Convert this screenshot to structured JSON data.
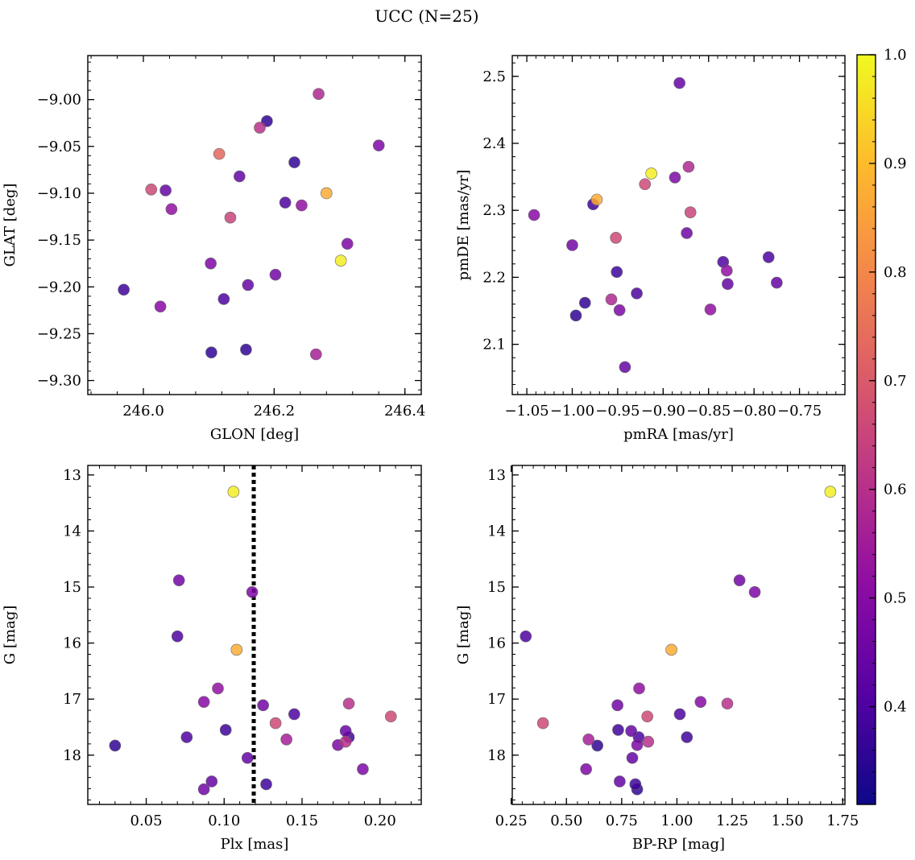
{
  "figure": {
    "title": "UCC (N=25)"
  },
  "colorbar": {
    "vmin": 0.31,
    "vmax": 1.0,
    "ticks": [
      0.4,
      0.5,
      0.6,
      0.7,
      0.8,
      0.9,
      1.0
    ],
    "tick_labels": [
      "0.4",
      "0.5",
      "0.6",
      "0.7",
      "0.8",
      "0.9",
      "1.0"
    ],
    "colormap": "plasma"
  },
  "chart_data": [
    {
      "type": "scatter",
      "id": "glon-glat",
      "xlabel": "GLON [deg]",
      "ylabel": "GLAT [deg]",
      "xlim": [
        245.915,
        246.425
      ],
      "ylim": [
        -9.315,
        -8.953
      ],
      "xticks": [
        246.0,
        246.2,
        246.4
      ],
      "xtick_labels": [
        "246.0",
        "246.2",
        "246.4"
      ],
      "yticks": [
        -9.3,
        -9.25,
        -9.2,
        -9.15,
        -9.1,
        -9.05,
        -9.0
      ],
      "ytick_labels": [
        "−9.30",
        "−9.25",
        "−9.20",
        "−9.15",
        "−9.10",
        "−9.05",
        "−9.00"
      ],
      "inverted_y": false,
      "points": [
        {
          "x": 246.268,
          "y": -8.994,
          "c": 0.58
        },
        {
          "x": 246.189,
          "y": -9.023,
          "c": 0.36
        },
        {
          "x": 246.178,
          "y": -9.03,
          "c": 0.6
        },
        {
          "x": 246.36,
          "y": -9.049,
          "c": 0.48
        },
        {
          "x": 246.116,
          "y": -9.058,
          "c": 0.73
        },
        {
          "x": 246.231,
          "y": -9.067,
          "c": 0.36
        },
        {
          "x": 246.147,
          "y": -9.082,
          "c": 0.44
        },
        {
          "x": 246.012,
          "y": -9.096,
          "c": 0.66
        },
        {
          "x": 246.034,
          "y": -9.097,
          "c": 0.44
        },
        {
          "x": 246.28,
          "y": -9.1,
          "c": 0.87
        },
        {
          "x": 246.217,
          "y": -9.11,
          "c": 0.4
        },
        {
          "x": 246.242,
          "y": -9.113,
          "c": 0.52
        },
        {
          "x": 246.043,
          "y": -9.117,
          "c": 0.52
        },
        {
          "x": 246.133,
          "y": -9.126,
          "c": 0.65
        },
        {
          "x": 246.312,
          "y": -9.154,
          "c": 0.48
        },
        {
          "x": 246.302,
          "y": -9.172,
          "c": 0.98
        },
        {
          "x": 246.103,
          "y": -9.175,
          "c": 0.48
        },
        {
          "x": 246.202,
          "y": -9.187,
          "c": 0.46
        },
        {
          "x": 246.16,
          "y": -9.198,
          "c": 0.44
        },
        {
          "x": 245.97,
          "y": -9.203,
          "c": 0.38
        },
        {
          "x": 246.123,
          "y": -9.213,
          "c": 0.4
        },
        {
          "x": 246.026,
          "y": -9.221,
          "c": 0.5
        },
        {
          "x": 246.157,
          "y": -9.267,
          "c": 0.36
        },
        {
          "x": 246.104,
          "y": -9.27,
          "c": 0.36
        },
        {
          "x": 246.264,
          "y": -9.272,
          "c": 0.56
        }
      ]
    },
    {
      "type": "scatter",
      "id": "pmra-pmde",
      "xlabel": "pmRA [mas/yr]",
      "ylabel": "pmDE [mas/yr]",
      "xlim": [
        -1.066,
        -0.7
      ],
      "ylim": [
        2.025,
        2.531
      ],
      "xticks": [
        -1.05,
        -1.0,
        -0.95,
        -0.9,
        -0.85,
        -0.8,
        -0.75
      ],
      "xtick_labels": [
        "−1.05",
        "−1.00",
        "−0.95",
        "−0.90",
        "−0.85",
        "−0.80",
        "−0.75"
      ],
      "yticks": [
        2.1,
        2.2,
        2.3,
        2.4,
        2.5
      ],
      "ytick_labels": [
        "2.1",
        "2.2",
        "2.3",
        "2.4",
        "2.5"
      ],
      "inverted_y": false,
      "points": [
        {
          "x": -0.882,
          "y": 2.49,
          "c": 0.44
        },
        {
          "x": -0.872,
          "y": 2.365,
          "c": 0.58
        },
        {
          "x": -0.913,
          "y": 2.355,
          "c": 0.98
        },
        {
          "x": -0.887,
          "y": 2.349,
          "c": 0.48
        },
        {
          "x": -0.92,
          "y": 2.339,
          "c": 0.66
        },
        {
          "x": -0.973,
          "y": 2.316,
          "c": 0.87
        },
        {
          "x": -0.977,
          "y": 2.309,
          "c": 0.38
        },
        {
          "x": -0.87,
          "y": 2.297,
          "c": 0.65
        },
        {
          "x": -1.042,
          "y": 2.293,
          "c": 0.5
        },
        {
          "x": -0.874,
          "y": 2.266,
          "c": 0.46
        },
        {
          "x": -0.952,
          "y": 2.259,
          "c": 0.66
        },
        {
          "x": -1.0,
          "y": 2.248,
          "c": 0.46
        },
        {
          "x": -0.784,
          "y": 2.23,
          "c": 0.4
        },
        {
          "x": -0.834,
          "y": 2.223,
          "c": 0.4
        },
        {
          "x": -0.83,
          "y": 2.21,
          "c": 0.52
        },
        {
          "x": -0.951,
          "y": 2.208,
          "c": 0.38
        },
        {
          "x": -0.775,
          "y": 2.192,
          "c": 0.44
        },
        {
          "x": -0.829,
          "y": 2.19,
          "c": 0.44
        },
        {
          "x": -0.929,
          "y": 2.176,
          "c": 0.4
        },
        {
          "x": -0.957,
          "y": 2.167,
          "c": 0.58
        },
        {
          "x": -0.986,
          "y": 2.162,
          "c": 0.36
        },
        {
          "x": -0.848,
          "y": 2.152,
          "c": 0.52
        },
        {
          "x": -0.948,
          "y": 2.151,
          "c": 0.48
        },
        {
          "x": -0.996,
          "y": 2.143,
          "c": 0.36
        },
        {
          "x": -0.942,
          "y": 2.066,
          "c": 0.44
        }
      ]
    },
    {
      "type": "scatter",
      "id": "plx-g",
      "xlabel": "Plx [mas]",
      "ylabel": "G [mag]",
      "xlim": [
        0.0125,
        0.2265
      ],
      "ylim": [
        12.83,
        18.88
      ],
      "inverted_y": true,
      "xticks": [
        0.05,
        0.1,
        0.15,
        0.2
      ],
      "xtick_labels": [
        "0.05",
        "0.10",
        "0.15",
        "0.20"
      ],
      "yticks": [
        13,
        14,
        15,
        16,
        17,
        18
      ],
      "ytick_labels": [
        "13",
        "14",
        "15",
        "16",
        "17",
        "18"
      ],
      "vline": 0.119,
      "points": [
        {
          "x": 0.106,
          "y": 13.3,
          "c": 0.98
        },
        {
          "x": 0.071,
          "y": 14.88,
          "c": 0.46
        },
        {
          "x": 0.118,
          "y": 15.09,
          "c": 0.48
        },
        {
          "x": 0.07,
          "y": 15.88,
          "c": 0.4
        },
        {
          "x": 0.108,
          "y": 16.12,
          "c": 0.87
        },
        {
          "x": 0.096,
          "y": 16.81,
          "c": 0.52
        },
        {
          "x": 0.087,
          "y": 17.05,
          "c": 0.5
        },
        {
          "x": 0.125,
          "y": 17.11,
          "c": 0.46
        },
        {
          "x": 0.18,
          "y": 17.08,
          "c": 0.6
        },
        {
          "x": 0.145,
          "y": 17.27,
          "c": 0.4
        },
        {
          "x": 0.207,
          "y": 17.31,
          "c": 0.66
        },
        {
          "x": 0.133,
          "y": 17.43,
          "c": 0.66
        },
        {
          "x": 0.101,
          "y": 17.55,
          "c": 0.38
        },
        {
          "x": 0.178,
          "y": 17.57,
          "c": 0.44
        },
        {
          "x": 0.076,
          "y": 17.68,
          "c": 0.4
        },
        {
          "x": 0.18,
          "y": 17.68,
          "c": 0.38
        },
        {
          "x": 0.14,
          "y": 17.72,
          "c": 0.56
        },
        {
          "x": 0.178,
          "y": 17.76,
          "c": 0.6
        },
        {
          "x": 0.03,
          "y": 17.83,
          "c": 0.36
        },
        {
          "x": 0.173,
          "y": 17.82,
          "c": 0.48
        },
        {
          "x": 0.115,
          "y": 18.05,
          "c": 0.44
        },
        {
          "x": 0.189,
          "y": 18.25,
          "c": 0.48
        },
        {
          "x": 0.092,
          "y": 18.47,
          "c": 0.44
        },
        {
          "x": 0.127,
          "y": 18.52,
          "c": 0.38
        },
        {
          "x": 0.087,
          "y": 18.61,
          "c": 0.46
        }
      ]
    },
    {
      "type": "scatter",
      "id": "bprp-g",
      "xlabel": "BP-RP [mag]",
      "ylabel": "G [mag]",
      "xlim": [
        0.255,
        1.76
      ],
      "ylim": [
        12.83,
        18.88
      ],
      "inverted_y": true,
      "xticks": [
        0.25,
        0.5,
        0.75,
        1.0,
        1.25,
        1.5,
        1.75
      ],
      "xtick_labels": [
        "0.25",
        "0.50",
        "0.75",
        "1.00",
        "1.25",
        "1.50",
        "1.75"
      ],
      "yticks": [
        13,
        14,
        15,
        16,
        17,
        18
      ],
      "ytick_labels": [
        "13",
        "14",
        "15",
        "16",
        "17",
        "18"
      ],
      "points": [
        {
          "x": 1.694,
          "y": 13.3,
          "c": 0.98
        },
        {
          "x": 1.283,
          "y": 14.88,
          "c": 0.46
        },
        {
          "x": 1.352,
          "y": 15.09,
          "c": 0.48
        },
        {
          "x": 0.316,
          "y": 15.88,
          "c": 0.4
        },
        {
          "x": 0.975,
          "y": 16.12,
          "c": 0.87
        },
        {
          "x": 0.829,
          "y": 16.81,
          "c": 0.52
        },
        {
          "x": 1.107,
          "y": 17.05,
          "c": 0.5
        },
        {
          "x": 0.731,
          "y": 17.11,
          "c": 0.46
        },
        {
          "x": 1.228,
          "y": 17.08,
          "c": 0.6
        },
        {
          "x": 1.013,
          "y": 17.27,
          "c": 0.4
        },
        {
          "x": 0.866,
          "y": 17.31,
          "c": 0.66
        },
        {
          "x": 0.394,
          "y": 17.43,
          "c": 0.66
        },
        {
          "x": 0.734,
          "y": 17.55,
          "c": 0.38
        },
        {
          "x": 0.793,
          "y": 17.57,
          "c": 0.44
        },
        {
          "x": 0.827,
          "y": 17.68,
          "c": 0.4
        },
        {
          "x": 1.045,
          "y": 17.68,
          "c": 0.38
        },
        {
          "x": 0.6,
          "y": 17.72,
          "c": 0.56
        },
        {
          "x": 0.87,
          "y": 17.76,
          "c": 0.6
        },
        {
          "x": 0.64,
          "y": 17.83,
          "c": 0.36
        },
        {
          "x": 0.82,
          "y": 17.82,
          "c": 0.48
        },
        {
          "x": 0.798,
          "y": 18.05,
          "c": 0.44
        },
        {
          "x": 0.589,
          "y": 18.25,
          "c": 0.48
        },
        {
          "x": 0.741,
          "y": 18.47,
          "c": 0.44
        },
        {
          "x": 0.812,
          "y": 18.52,
          "c": 0.38
        },
        {
          "x": 0.82,
          "y": 18.61,
          "c": 0.36
        }
      ]
    }
  ]
}
